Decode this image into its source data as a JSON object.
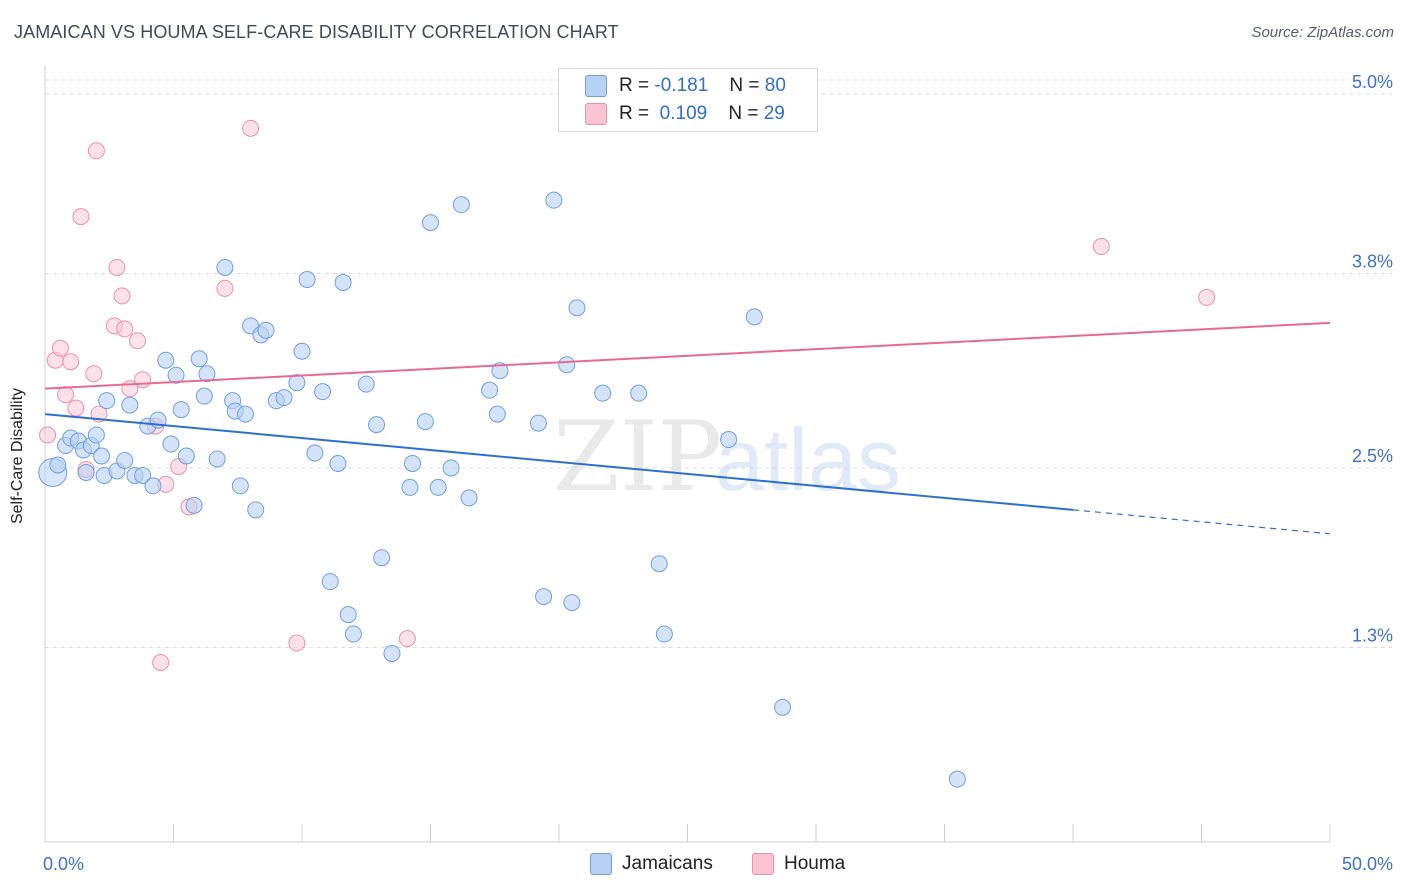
{
  "header": {
    "title": "JAMAICAN VS HOUMA SELF-CARE DISABILITY CORRELATION CHART",
    "source": "Source: ZipAtlas.com"
  },
  "colors": {
    "blue_fill": "#b7d1f4",
    "blue_stroke": "#6f9fe0",
    "blue_line": "#2f6fd0",
    "pink_fill": "#f8c3d3",
    "pink_stroke": "#ec8fad",
    "pink_line": "#e56b96",
    "axis_label": "#3d72c9",
    "grid": "#dcdcdc"
  },
  "legend": {
    "blue": {
      "r_label": "R =",
      "r_value": "-0.181",
      "n_label": "N =",
      "n_value": "80"
    },
    "pink": {
      "r_label": "R =",
      "r_value": "0.109",
      "n_label": "N =",
      "n_value": "29"
    }
  },
  "watermark": {
    "zip": "ZIP",
    "atlas": "atlas"
  },
  "chart_data": {
    "type": "scatter",
    "title": "JAMAICAN VS HOUMA SELF-CARE DISABILITY CORRELATION CHART",
    "xlabel": "",
    "ylabel": "Self-Care Disability",
    "xlim": [
      0,
      50
    ],
    "ylim": [
      0.0,
      5.2
    ],
    "x_tick_labels": [
      "0.0%",
      "50.0%"
    ],
    "y_ticks": [
      1.3,
      2.5,
      3.8,
      5.0
    ],
    "y_tick_labels": [
      "1.3%",
      "2.5%",
      "3.8%",
      "5.0%"
    ],
    "grid": true,
    "legend_position": "top-center",
    "series": [
      {
        "name": "Jamaicans",
        "color": "#b7d1f4",
        "trend": {
          "x0": 0,
          "y0": 2.86,
          "x1": 40,
          "y1": 2.22,
          "dashed_to_x": 50,
          "dashed_to_y": 2.06
        },
        "points": [
          [
            0.3,
            2.47
          ],
          [
            0.5,
            2.52
          ],
          [
            0.8,
            2.65
          ],
          [
            1.0,
            2.7
          ],
          [
            1.3,
            2.68
          ],
          [
            1.5,
            2.62
          ],
          [
            1.6,
            2.47
          ],
          [
            1.8,
            2.65
          ],
          [
            2.0,
            2.72
          ],
          [
            2.2,
            2.58
          ],
          [
            2.4,
            2.95
          ],
          [
            2.3,
            2.45
          ],
          [
            2.8,
            2.48
          ],
          [
            3.1,
            2.55
          ],
          [
            3.3,
            2.92
          ],
          [
            3.5,
            2.45
          ],
          [
            3.8,
            2.45
          ],
          [
            4.0,
            2.78
          ],
          [
            4.2,
            2.38
          ],
          [
            4.4,
            2.82
          ],
          [
            4.7,
            3.22
          ],
          [
            4.9,
            2.66
          ],
          [
            5.1,
            3.12
          ],
          [
            5.3,
            2.89
          ],
          [
            5.5,
            2.58
          ],
          [
            5.8,
            2.25
          ],
          [
            6.0,
            3.23
          ],
          [
            6.2,
            2.98
          ],
          [
            6.3,
            3.13
          ],
          [
            6.7,
            2.56
          ],
          [
            7.0,
            3.84
          ],
          [
            7.3,
            2.95
          ],
          [
            7.4,
            2.88
          ],
          [
            7.6,
            2.38
          ],
          [
            7.8,
            2.86
          ],
          [
            8.0,
            3.45
          ],
          [
            8.2,
            2.22
          ],
          [
            8.4,
            3.39
          ],
          [
            8.6,
            3.42
          ],
          [
            9.0,
            2.95
          ],
          [
            9.3,
            2.97
          ],
          [
            9.8,
            3.07
          ],
          [
            10.2,
            3.76
          ],
          [
            10.0,
            3.28
          ],
          [
            10.5,
            2.6
          ],
          [
            10.8,
            3.01
          ],
          [
            11.1,
            1.74
          ],
          [
            11.4,
            2.53
          ],
          [
            11.6,
            3.74
          ],
          [
            11.8,
            1.52
          ],
          [
            12.0,
            1.39
          ],
          [
            12.5,
            3.06
          ],
          [
            12.9,
            2.79
          ],
          [
            13.1,
            1.9
          ],
          [
            13.5,
            1.26
          ],
          [
            14.3,
            2.53
          ],
          [
            14.2,
            2.37
          ],
          [
            14.8,
            2.81
          ],
          [
            15.0,
            4.14
          ],
          [
            15.3,
            2.37
          ],
          [
            15.8,
            2.5
          ],
          [
            16.2,
            4.26
          ],
          [
            16.5,
            2.3
          ],
          [
            17.3,
            3.02
          ],
          [
            17.6,
            2.86
          ],
          [
            17.7,
            3.15
          ],
          [
            19.2,
            2.8
          ],
          [
            19.4,
            1.64
          ],
          [
            19.8,
            4.29
          ],
          [
            20.3,
            3.19
          ],
          [
            20.5,
            1.6
          ],
          [
            20.7,
            3.57
          ],
          [
            21.7,
            3.0
          ],
          [
            23.1,
            3.0
          ],
          [
            23.9,
            1.86
          ],
          [
            24.1,
            1.39
          ],
          [
            26.6,
            2.69
          ],
          [
            27.6,
            3.51
          ],
          [
            28.7,
            0.9
          ],
          [
            35.5,
            0.42
          ]
        ]
      },
      {
        "name": "Houma",
        "color": "#f8c3d3",
        "trend": {
          "x0": 0,
          "y0": 3.03,
          "x1": 50,
          "y1": 3.47
        },
        "points": [
          [
            0.1,
            2.72
          ],
          [
            0.4,
            3.22
          ],
          [
            0.6,
            3.3
          ],
          [
            0.8,
            2.99
          ],
          [
            1.0,
            3.21
          ],
          [
            1.2,
            2.9
          ],
          [
            1.4,
            4.18
          ],
          [
            1.6,
            2.49
          ],
          [
            1.9,
            3.13
          ],
          [
            2.0,
            4.62
          ],
          [
            2.1,
            2.86
          ],
          [
            2.7,
            3.45
          ],
          [
            2.8,
            3.84
          ],
          [
            3.0,
            3.65
          ],
          [
            3.1,
            3.43
          ],
          [
            3.3,
            3.03
          ],
          [
            3.6,
            3.35
          ],
          [
            3.8,
            3.09
          ],
          [
            4.3,
            2.78
          ],
          [
            4.5,
            1.2
          ],
          [
            4.7,
            2.39
          ],
          [
            5.2,
            2.51
          ],
          [
            5.6,
            2.24
          ],
          [
            7.0,
            3.7
          ],
          [
            8.0,
            4.77
          ],
          [
            9.8,
            1.33
          ],
          [
            14.1,
            1.36
          ],
          [
            41.1,
            3.98
          ],
          [
            45.2,
            3.64
          ]
        ]
      }
    ]
  },
  "bottom_legend": {
    "blue_label": "Jamaicans",
    "pink_label": "Houma"
  }
}
